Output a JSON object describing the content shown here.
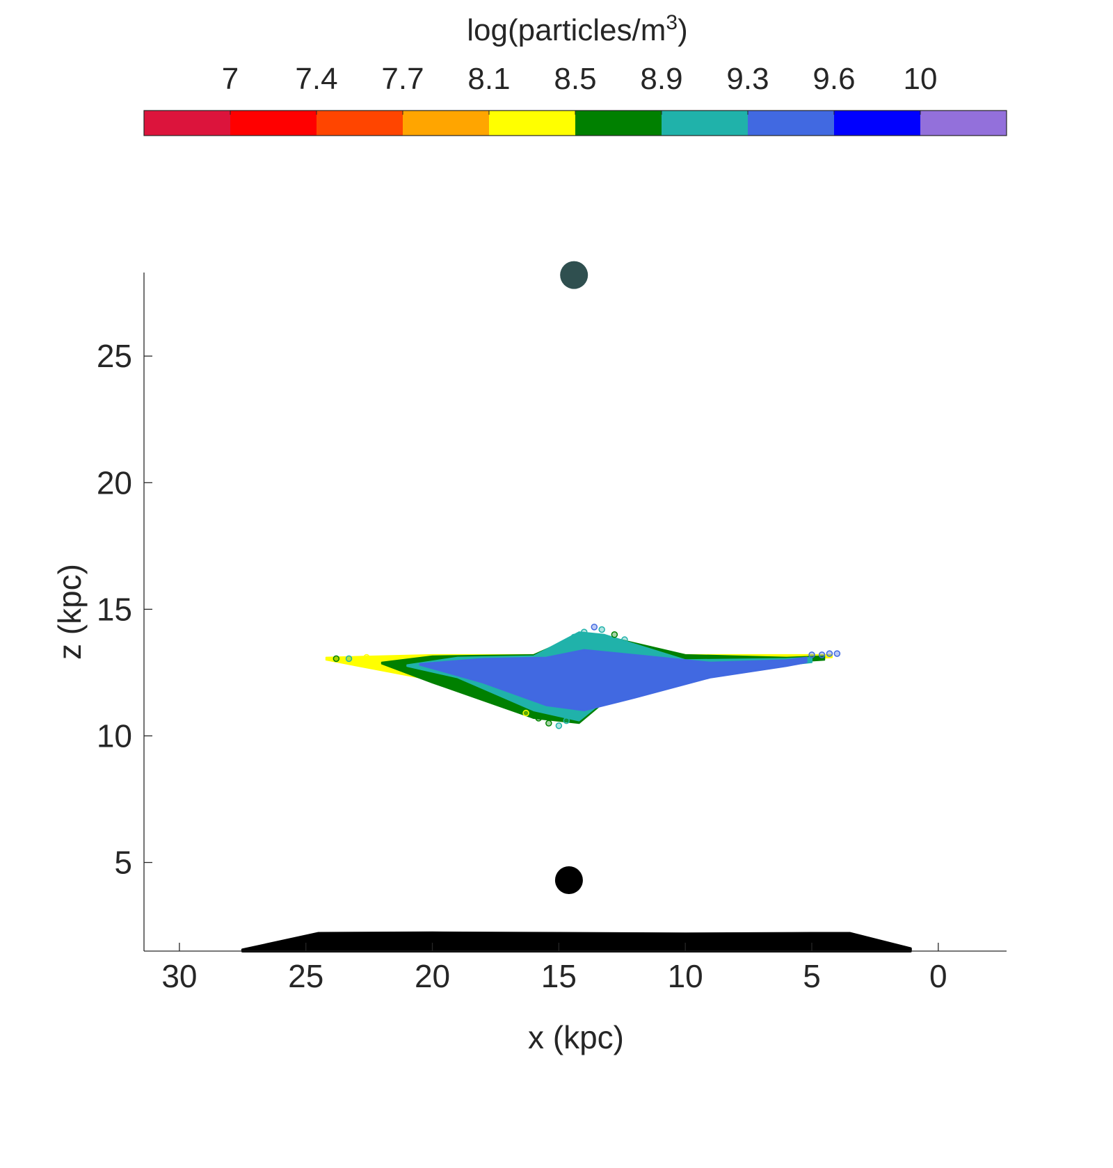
{
  "chart_data": {
    "type": "scatter",
    "colorbar": {
      "title": "log(particles/m",
      "title_superscript": "3",
      "title_suffix": ")",
      "placement": "top",
      "tick_labels": [
        "7",
        "7.4",
        "7.7",
        "8.1",
        "8.5",
        "8.9",
        "9.3",
        "9.6",
        "10"
      ],
      "colors": [
        "#dc143c",
        "#ff0000",
        "#ff4500",
        "#ffa500",
        "#ffff00",
        "#008000",
        "#20b2aa",
        "#4169e1",
        "#0000ff",
        "#9370db"
      ]
    },
    "xlabel": "x (kpc)",
    "ylabel": "z (kpc)",
    "x_reversed": true,
    "xlim": [
      -2.7,
      31.4
    ],
    "ylim": [
      1.5,
      28.3
    ],
    "x_ticks": [
      "30",
      "25",
      "20",
      "15",
      "10",
      "5",
      "0"
    ],
    "x_tick_values": [
      30,
      25,
      20,
      15,
      10,
      5,
      0
    ],
    "y_ticks": [
      "25",
      "20",
      "15",
      "10",
      "5"
    ],
    "y_tick_values": [
      25,
      20,
      15,
      10,
      5
    ],
    "grid": false,
    "markers": [
      {
        "name": "upper marker",
        "x": 14.4,
        "z": 28.2,
        "color": "#2f4f4f"
      },
      {
        "name": "lower marker",
        "x": 14.6,
        "z": 4.3,
        "color": "#000000"
      }
    ],
    "base_profile": {
      "color": "#000000",
      "x": [
        27.5,
        24.5,
        20,
        15,
        10,
        5,
        3.5,
        1.1
      ],
      "z_top": [
        1.55,
        2.2,
        2.22,
        2.2,
        2.18,
        2.2,
        2.2,
        1.6
      ]
    },
    "plume_layers": [
      {
        "color": "#ffff00",
        "x": [
          24.2,
          20,
          16,
          13,
          10,
          6,
          4.2
        ],
        "z_top": [
          13.1,
          13.2,
          13.2,
          13.8,
          13.2,
          13.2,
          13.2
        ],
        "z_bottom": [
          13.0,
          12.2,
          10.9,
          11.6,
          12.5,
          13.0,
          13.1
        ]
      },
      {
        "color": "#008000",
        "x": [
          22.0,
          20,
          16,
          14.2,
          13,
          10,
          6,
          4.5
        ],
        "z_top": [
          12.9,
          13.15,
          13.2,
          14.0,
          13.9,
          13.2,
          13.1,
          13.15
        ],
        "z_bottom": [
          12.85,
          12.1,
          10.7,
          10.5,
          11.5,
          12.4,
          12.9,
          13.0
        ]
      },
      {
        "color": "#20b2aa",
        "x": [
          21.0,
          19,
          16,
          14.2,
          13.2,
          10,
          6,
          5
        ],
        "z_top": [
          12.8,
          13.1,
          13.15,
          14.1,
          14.0,
          13.0,
          13.05,
          13.1
        ],
        "z_bottom": [
          12.75,
          12.3,
          11.0,
          10.6,
          11.4,
          12.3,
          12.8,
          12.9
        ]
      },
      {
        "color": "#4169e1",
        "x": [
          20.5,
          18,
          15.5,
          14,
          12,
          9,
          6,
          5.2
        ],
        "z_top": [
          12.85,
          13.05,
          13.1,
          13.4,
          13.2,
          12.9,
          13.0,
          13.1
        ],
        "z_bottom": [
          12.8,
          12.1,
          11.2,
          11.0,
          11.5,
          12.3,
          12.75,
          12.9
        ]
      }
    ],
    "halo_points": [
      {
        "x": 14.0,
        "z": 14.1,
        "color": "#20b2aa"
      },
      {
        "x": 13.6,
        "z": 14.3,
        "color": "#4169e1"
      },
      {
        "x": 13.3,
        "z": 14.2,
        "color": "#20b2aa"
      },
      {
        "x": 12.8,
        "z": 14.0,
        "color": "#008000"
      },
      {
        "x": 14.4,
        "z": 13.9,
        "color": "#20b2aa"
      },
      {
        "x": 12.4,
        "z": 13.8,
        "color": "#20b2aa"
      },
      {
        "x": 15.0,
        "z": 10.4,
        "color": "#20b2aa"
      },
      {
        "x": 15.4,
        "z": 10.5,
        "color": "#008000"
      },
      {
        "x": 14.7,
        "z": 10.6,
        "color": "#20b2aa"
      },
      {
        "x": 15.8,
        "z": 10.7,
        "color": "#008000"
      },
      {
        "x": 16.3,
        "z": 10.9,
        "color": "#ffff00"
      },
      {
        "x": 4.0,
        "z": 13.25,
        "color": "#4169e1"
      },
      {
        "x": 4.3,
        "z": 13.25,
        "color": "#4169e1"
      },
      {
        "x": 4.6,
        "z": 13.2,
        "color": "#4169e1"
      },
      {
        "x": 5.0,
        "z": 13.2,
        "color": "#4169e1"
      },
      {
        "x": 23.8,
        "z": 13.05,
        "color": "#008000"
      },
      {
        "x": 23.3,
        "z": 13.05,
        "color": "#20b2aa"
      },
      {
        "x": 22.6,
        "z": 13.1,
        "color": "#ffff00"
      }
    ]
  }
}
